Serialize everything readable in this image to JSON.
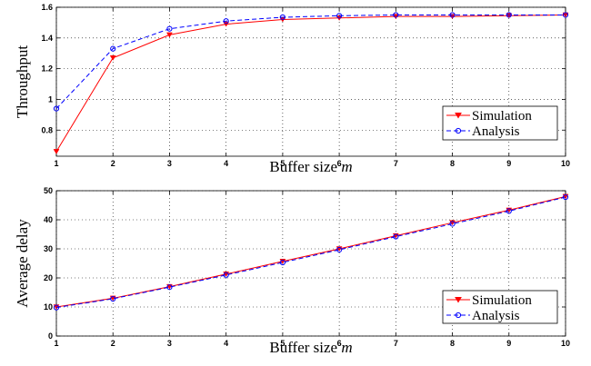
{
  "chart_data": [
    {
      "type": "line",
      "xlabel": "Buffer size",
      "xlabel_var": "m",
      "ylabel": "Throughput",
      "x": [
        1,
        2,
        3,
        4,
        5,
        6,
        7,
        8,
        9,
        10
      ],
      "xlim": [
        1,
        10
      ],
      "ylim": [
        0.63,
        1.6
      ],
      "xticks": [
        1,
        2,
        3,
        4,
        5,
        6,
        7,
        8,
        9,
        10
      ],
      "yticks": [
        0.8,
        1,
        1.2,
        1.4,
        1.6
      ],
      "ytick_labels": [
        "0.8",
        "1",
        "1.2",
        "1.4",
        "1.6"
      ],
      "grid": true,
      "legend_position": "bottom-right",
      "series": [
        {
          "name": "Simulation",
          "values": [
            0.66,
            1.27,
            1.42,
            1.49,
            1.52,
            1.53,
            1.54,
            1.54,
            1.545,
            1.55
          ],
          "color": "#ff0000",
          "dash": "solid",
          "marker": "triangle-down"
        },
        {
          "name": "Analysis",
          "values": [
            0.94,
            1.33,
            1.46,
            1.51,
            1.535,
            1.545,
            1.55,
            1.55,
            1.55,
            1.55
          ],
          "color": "#0000ff",
          "dash": "dashed",
          "marker": "circle"
        }
      ]
    },
    {
      "type": "line",
      "xlabel": "Buffer size",
      "xlabel_var": "m",
      "ylabel": "Average delay",
      "x": [
        1,
        2,
        3,
        4,
        5,
        6,
        7,
        8,
        9,
        10
      ],
      "xlim": [
        1,
        10
      ],
      "ylim": [
        0,
        50
      ],
      "xticks": [
        1,
        2,
        3,
        4,
        5,
        6,
        7,
        8,
        9,
        10
      ],
      "yticks": [
        0,
        10,
        20,
        30,
        40,
        50
      ],
      "ytick_labels": [
        "0",
        "10",
        "20",
        "30",
        "40",
        "50"
      ],
      "grid": true,
      "legend_position": "bottom-right",
      "series": [
        {
          "name": "Simulation",
          "values": [
            10,
            13,
            17,
            21.3,
            25.7,
            30,
            34.5,
            39,
            43.3,
            48
          ],
          "color": "#ff0000",
          "dash": "solid",
          "marker": "triangle-down"
        },
        {
          "name": "Analysis",
          "values": [
            9.8,
            12.8,
            16.8,
            21,
            25.3,
            29.7,
            34.2,
            38.6,
            43,
            47.8
          ],
          "color": "#0000ff",
          "dash": "dashed",
          "marker": "circle"
        }
      ]
    }
  ]
}
